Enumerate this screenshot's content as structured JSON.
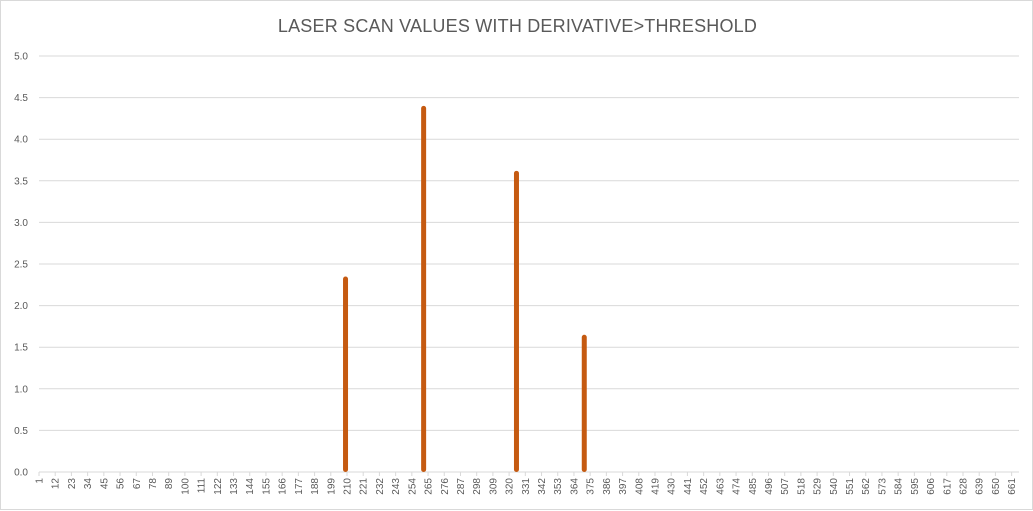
{
  "chart_data": {
    "type": "bar",
    "title": "LASER SCAN VALUES WITH DERIVATIVE>THRESHOLD",
    "xlabel": "",
    "ylabel": "",
    "ylim": [
      0,
      5
    ],
    "yticks": [
      "0.0",
      "0.5",
      "1.0",
      "1.5",
      "2.0",
      "2.5",
      "3.0",
      "3.5",
      "4.0",
      "4.5",
      "5.0"
    ],
    "xticks": [
      "1",
      "12",
      "23",
      "34",
      "45",
      "56",
      "67",
      "78",
      "89",
      "100",
      "111",
      "122",
      "133",
      "144",
      "155",
      "166",
      "177",
      "188",
      "199",
      "210",
      "221",
      "232",
      "243",
      "254",
      "265",
      "276",
      "287",
      "298",
      "309",
      "320",
      "331",
      "342",
      "353",
      "364",
      "375",
      "386",
      "397",
      "408",
      "419",
      "430",
      "441",
      "452",
      "463",
      "474",
      "485",
      "496",
      "507",
      "518",
      "529",
      "540",
      "551",
      "562",
      "573",
      "584",
      "595",
      "606",
      "617",
      "628",
      "639",
      "650",
      "661"
    ],
    "x_range": [
      1,
      666
    ],
    "points": [
      {
        "x": 209,
        "y": 2.35
      },
      {
        "x": 262,
        "y": 4.4
      },
      {
        "x": 325,
        "y": 3.62
      },
      {
        "x": 371,
        "y": 1.65
      }
    ],
    "grid": true,
    "legend": "none",
    "bar_color": "#c55a11",
    "grid_color": "#d9d9d9"
  }
}
